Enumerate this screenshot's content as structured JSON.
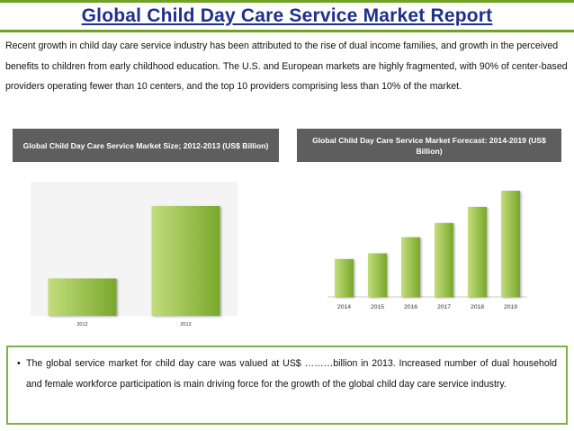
{
  "title": "Global Child Day Care Service Market Report",
  "intro": "Recent growth in child day care service industry has been attributed to the rise of dual income families, and growth in the perceived benefits to children from early childhood education. The U.S. and European markets are highly fragmented, with 90% of center-based providers operating fewer than 10 centers, and the top 10 providers comprising less than 10% of the market.",
  "colors": {
    "title": "#1f2f8c",
    "accent": "#70a324",
    "header_bg": "#5e5e5e",
    "bar_light": "#c3dd7c",
    "bar_dark": "#79a82b"
  },
  "charts": {
    "left_header": "Global Child Day Care Service Market Size; 2012-2013 (US$ Billion)",
    "right_header": "Global Child Day Care Service Market Forecast: 2014-2019 (US$ Billion)"
  },
  "chart_data": [
    {
      "type": "bar",
      "title": "Global Child Day Care Service Market Size; 2012-2013 (US$ Billion)",
      "categories": [
        "2012",
        "2013"
      ],
      "values": [
        34,
        100
      ],
      "xlabel": "",
      "ylabel": "",
      "ylim": [
        0,
        100
      ],
      "grid": false
    },
    {
      "type": "bar",
      "title": "Global Child Day Care Service Market Forecast: 2014-2019 (US$ Billion)",
      "categories": [
        "2014",
        "2015",
        "2016",
        "2017",
        "2018",
        "2019"
      ],
      "values": [
        40,
        46,
        63,
        78,
        95,
        112
      ],
      "xlabel": "",
      "ylabel": "",
      "ylim": [
        0,
        112
      ],
      "grid": false
    }
  ],
  "summary": {
    "bullet": "•",
    "text": "The global service market for child day care was valued at US$ ………billion in 2013. Increased number of dual household and female workforce participation is main driving force for the growth of the global child day care service industry."
  }
}
